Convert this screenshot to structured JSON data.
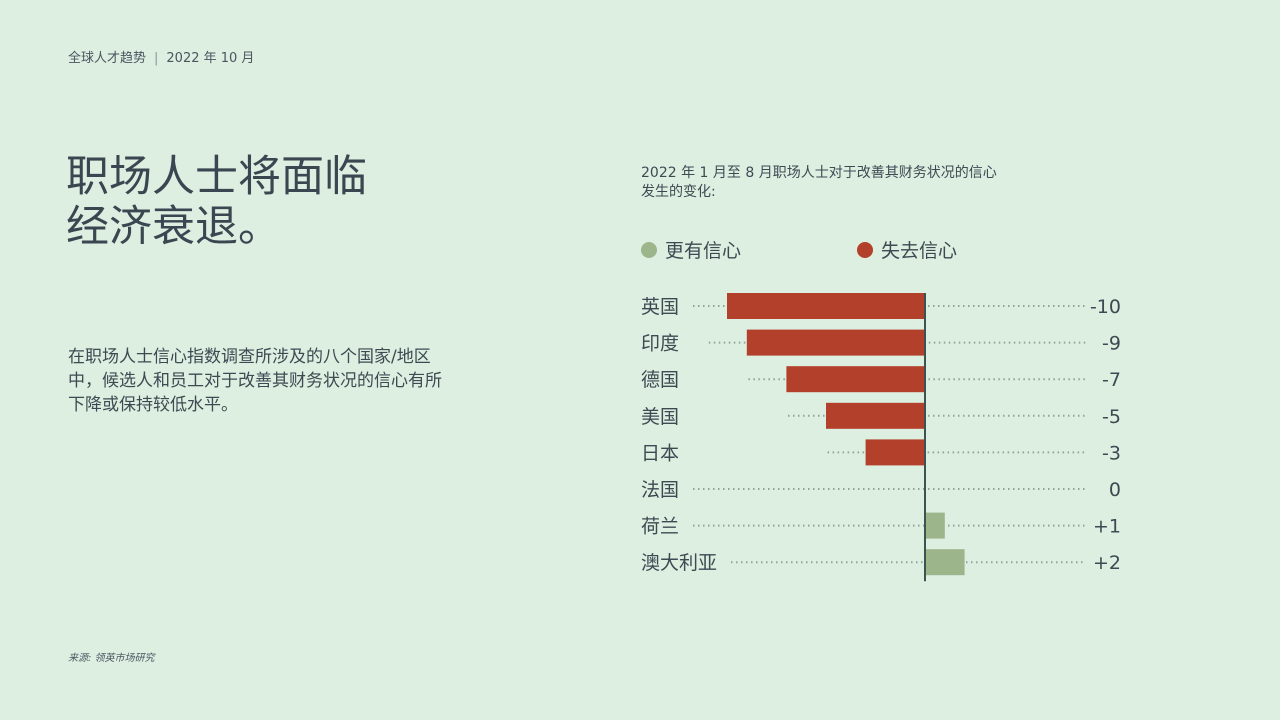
{
  "header": {
    "left": "全球人才趋势",
    "separator": "|",
    "right": "2022 年 10 月"
  },
  "headline": {
    "line1": "职场人士将面临",
    "line2": "经济衰退。"
  },
  "body_text": "在职场人士信心指数调查所涉及的八个国家/地区中，候选人和员工对于改善其财务状况的信心有所下降或保持较低水平。",
  "source": "来源: 领英市场研究",
  "colors": {
    "background": "#dcefe1",
    "positive": "#9db58a",
    "negative": "#b2402a",
    "axis": "#3d5350",
    "text": "#3d4a52"
  },
  "chart_data": {
    "type": "bar",
    "orientation": "horizontal",
    "subtitle": "2022 年 1 月至 8 月职场人士对于改善其财务状况的信心发生的变化:",
    "legend": [
      {
        "label": "更有信心",
        "color": "#9db58a"
      },
      {
        "label": "失去信心",
        "color": "#b2402a"
      }
    ],
    "categories": [
      "英国",
      "印度",
      "德国",
      "美国",
      "日本",
      "法国",
      "荷兰",
      "澳大利亚"
    ],
    "values": [
      -10,
      -9,
      -7,
      -5,
      -3,
      0,
      1,
      2
    ],
    "value_labels": [
      "-10",
      "-9",
      "-7",
      "-5",
      "-3",
      "0",
      "+1",
      "+2"
    ],
    "xlim": [
      -10,
      2
    ]
  }
}
